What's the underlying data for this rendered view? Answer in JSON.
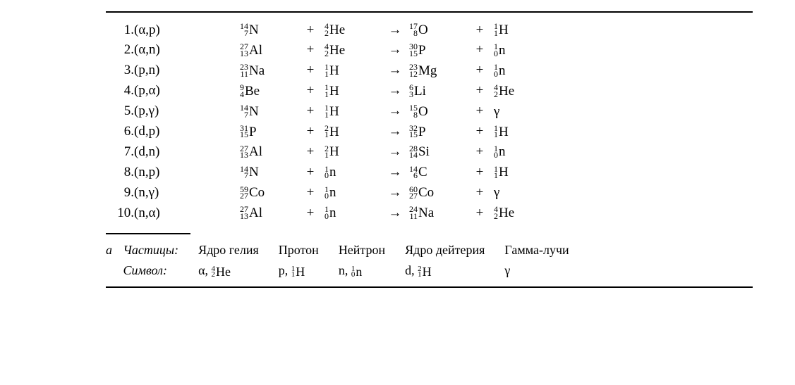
{
  "style": {
    "font_family": "Times New Roman",
    "body_fontsize_pt": 15,
    "small_fontsize_pt": 9,
    "text_color": "#000000",
    "background_color": "#ffffff",
    "rule_color": "#000000"
  },
  "ops": {
    "plus": "+",
    "arrow": "→"
  },
  "reactions": [
    {
      "n": "1.",
      "type": "(α,p)",
      "lhs1": {
        "A": "14",
        "Z": "7",
        "S": "N"
      },
      "lhs2": {
        "A": "4",
        "Z": "2",
        "S": "He"
      },
      "rhs1": {
        "A": "17",
        "Z": "8",
        "S": "O"
      },
      "rhs2": {
        "A": "1",
        "Z": "1",
        "S": "H"
      }
    },
    {
      "n": "2.",
      "type": "(α,n)",
      "lhs1": {
        "A": "27",
        "Z": "13",
        "S": "Al"
      },
      "lhs2": {
        "A": "4",
        "Z": "2",
        "S": "He"
      },
      "rhs1": {
        "A": "30",
        "Z": "15",
        "S": "P"
      },
      "rhs2": {
        "A": "1",
        "Z": "0",
        "S": "n"
      }
    },
    {
      "n": "3.",
      "type": "(p,n)",
      "lhs1": {
        "A": "23",
        "Z": "11",
        "S": "Na"
      },
      "lhs2": {
        "A": "1",
        "Z": "1",
        "S": "H"
      },
      "rhs1": {
        "A": "23",
        "Z": "12",
        "S": "Mg"
      },
      "rhs2": {
        "A": "1",
        "Z": "0",
        "S": "n"
      }
    },
    {
      "n": "4.",
      "type": "(p,α)",
      "lhs1": {
        "A": "9",
        "Z": "4",
        "S": "Be"
      },
      "lhs2": {
        "A": "1",
        "Z": "1",
        "S": "H"
      },
      "rhs1": {
        "A": "6",
        "Z": "3",
        "S": "Li"
      },
      "rhs2": {
        "A": "4",
        "Z": "2",
        "S": "He"
      }
    },
    {
      "n": "5.",
      "type": "(p,γ)",
      "lhs1": {
        "A": "14",
        "Z": "7",
        "S": "N"
      },
      "lhs2": {
        "A": "1",
        "Z": "1",
        "S": "H"
      },
      "rhs1": {
        "A": "15",
        "Z": "8",
        "S": "O"
      },
      "rhs2": {
        "plain": "γ"
      }
    },
    {
      "n": "6.",
      "type": "(d,p)",
      "lhs1": {
        "A": "31",
        "Z": "15",
        "S": "P"
      },
      "lhs2": {
        "A": "2",
        "Z": "1",
        "S": "H"
      },
      "rhs1": {
        "A": "32",
        "Z": "15",
        "S": "P"
      },
      "rhs2": {
        "A": "1",
        "Z": "1",
        "S": "H"
      }
    },
    {
      "n": "7.",
      "type": "(d,n)",
      "lhs1": {
        "A": "27",
        "Z": "13",
        "S": "Al"
      },
      "lhs2": {
        "A": "2",
        "Z": "1",
        "S": "H"
      },
      "rhs1": {
        "A": "28",
        "Z": "14",
        "S": "Si"
      },
      "rhs2": {
        "A": "1",
        "Z": "0",
        "S": "n"
      }
    },
    {
      "n": "8.",
      "type": "(n,p)",
      "lhs1": {
        "A": "14",
        "Z": "7",
        "S": "N"
      },
      "lhs2": {
        "A": "1",
        "Z": "0",
        "S": "n"
      },
      "rhs1": {
        "A": "14",
        "Z": "6",
        "S": "C"
      },
      "rhs2": {
        "A": "1",
        "Z": "1",
        "S": "H"
      }
    },
    {
      "n": "9.",
      "type": "(n,γ)",
      "lhs1": {
        "A": "59",
        "Z": "27",
        "S": "Co"
      },
      "lhs2": {
        "A": "1",
        "Z": "0",
        "S": "n"
      },
      "rhs1": {
        "A": "60",
        "Z": "27",
        "S": "Co"
      },
      "rhs2": {
        "plain": "γ"
      }
    },
    {
      "n": "10.",
      "type": "(n,α)",
      "lhs1": {
        "A": "27",
        "Z": "13",
        "S": "Al"
      },
      "lhs2": {
        "A": "1",
        "Z": "0",
        "S": "n"
      },
      "rhs1": {
        "A": "24",
        "Z": "11",
        "S": "Na"
      },
      "rhs2": {
        "A": "4",
        "Z": "2",
        "S": "He"
      }
    }
  ],
  "legend": {
    "marker": "а",
    "row_labels": {
      "particles": "Частицы:",
      "symbol": "Символ:"
    },
    "cols": [
      {
        "name": "Ядро гелия",
        "sym_prefix": "α, ",
        "nuc": {
          "A": "4",
          "Z": "2",
          "S": "He"
        }
      },
      {
        "name": "Протон",
        "sym_prefix": "p, ",
        "nuc": {
          "A": "1",
          "Z": "1",
          "S": "H"
        }
      },
      {
        "name": "Нейтрон",
        "sym_prefix": "n, ",
        "nuc": {
          "A": "1",
          "Z": "0",
          "S": "n"
        }
      },
      {
        "name": "Ядро дейтерия",
        "sym_prefix": "d, ",
        "nuc": {
          "A": "2",
          "Z": "1",
          "S": "H"
        }
      },
      {
        "name": "Гамма-лучи",
        "sym_plain": "γ"
      }
    ]
  }
}
